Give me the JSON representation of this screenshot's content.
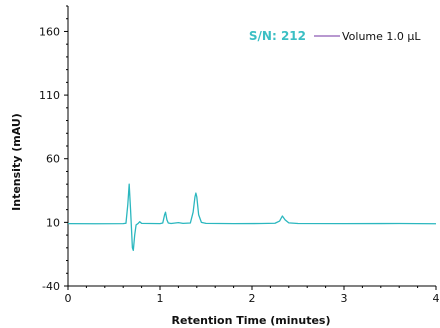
{
  "chart_data": {
    "type": "line",
    "xlabel": "Retention Time (minutes)",
    "ylabel": "Intensity (mAU)",
    "xlim": [
      0,
      4
    ],
    "ylim": [
      -40,
      180
    ],
    "xticks": [
      0,
      1,
      2,
      3,
      4
    ],
    "yticks": [
      -40,
      10,
      60,
      110,
      160
    ],
    "grid": false,
    "legend_position": "top-right",
    "annotation": {
      "text": "S/N: 212",
      "color": "#3bbfc4"
    },
    "series": [
      {
        "name": "Volume 1.0 µL",
        "color": "#2bb7bf",
        "legend_color": "#7030a0",
        "baseline": 9.0,
        "points": [
          [
            0.0,
            9.0
          ],
          [
            0.3,
            8.9
          ],
          [
            0.6,
            9.0
          ],
          [
            0.63,
            9.3
          ],
          [
            0.65,
            24.0
          ],
          [
            0.665,
            40.0
          ],
          [
            0.68,
            20.0
          ],
          [
            0.69,
            5.0
          ],
          [
            0.7,
            -10.0
          ],
          [
            0.71,
            -12.0
          ],
          [
            0.725,
            0.0
          ],
          [
            0.74,
            8.0
          ],
          [
            0.76,
            9.0
          ],
          [
            0.78,
            10.5
          ],
          [
            0.8,
            9.2
          ],
          [
            1.0,
            9.0
          ],
          [
            1.03,
            9.5
          ],
          [
            1.05,
            16.0
          ],
          [
            1.06,
            18.0
          ],
          [
            1.075,
            12.0
          ],
          [
            1.09,
            9.5
          ],
          [
            1.12,
            9.1
          ],
          [
            1.2,
            9.8
          ],
          [
            1.25,
            9.2
          ],
          [
            1.33,
            9.5
          ],
          [
            1.36,
            18.0
          ],
          [
            1.38,
            30.0
          ],
          [
            1.39,
            33.0
          ],
          [
            1.4,
            30.0
          ],
          [
            1.42,
            16.0
          ],
          [
            1.45,
            10.0
          ],
          [
            1.5,
            9.2
          ],
          [
            1.8,
            9.0
          ],
          [
            2.1,
            9.1
          ],
          [
            2.25,
            9.3
          ],
          [
            2.3,
            11.0
          ],
          [
            2.33,
            15.0
          ],
          [
            2.36,
            12.0
          ],
          [
            2.4,
            9.6
          ],
          [
            2.5,
            9.1
          ],
          [
            3.0,
            9.0
          ],
          [
            3.6,
            9.1
          ],
          [
            4.0,
            8.9
          ]
        ]
      }
    ]
  }
}
